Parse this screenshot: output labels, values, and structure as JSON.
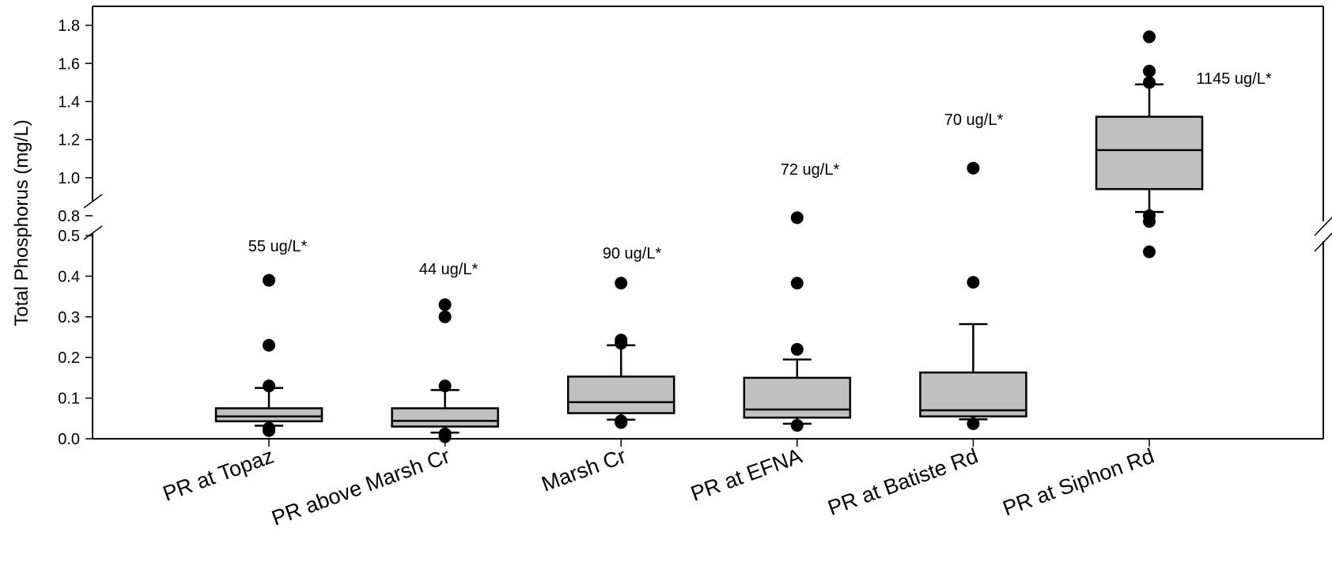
{
  "chart_data": {
    "type": "box",
    "title": "",
    "xlabel": "",
    "ylabel": "Total Phosphorus (mg/L)",
    "y_axis_break": true,
    "y_segments": [
      {
        "range": [
          0,
          0.5
        ],
        "ticks": [
          "0.0",
          "0.1",
          "0.2",
          "0.3",
          "0.4",
          "0.5"
        ]
      },
      {
        "range": [
          0.7,
          1.9
        ],
        "ticks": [
          "0.8",
          "1.0",
          "1.2",
          "1.4",
          "1.6",
          "1.8"
        ]
      }
    ],
    "grid": false,
    "box_fill": "#c0c0c0",
    "categories": [
      "PR at Topaz",
      "PR above Marsh Cr",
      "Marsh Cr",
      "PR at EFNA",
      "PR at Batiste Rd",
      "PR at Siphon Rd"
    ],
    "annotations": [
      "55 ug/L*",
      "44 ug/L*",
      "90 ug/L*",
      "72 ug/L*",
      "70 ug/L*",
      "1145 ug/L*"
    ],
    "boxes": [
      {
        "whisker_low": 0.032,
        "q1": 0.043,
        "median": 0.055,
        "q3": 0.075,
        "whisker_high": 0.125,
        "outliers": [
          0.02,
          0.026,
          0.13,
          0.23,
          0.39
        ]
      },
      {
        "whisker_low": 0.015,
        "q1": 0.03,
        "median": 0.044,
        "q3": 0.075,
        "whisker_high": 0.12,
        "outliers": [
          0.005,
          0.012,
          0.13,
          0.3,
          0.33
        ]
      },
      {
        "whisker_low": 0.047,
        "q1": 0.063,
        "median": 0.09,
        "q3": 0.153,
        "whisker_high": 0.23,
        "outliers": [
          0.04,
          0.044,
          0.235,
          0.243,
          0.383
        ]
      },
      {
        "whisker_low": 0.037,
        "q1": 0.052,
        "median": 0.072,
        "q3": 0.15,
        "whisker_high": 0.195,
        "outliers": [
          0.033,
          0.22,
          0.383,
          0.79
        ]
      },
      {
        "whisker_low": 0.048,
        "q1": 0.055,
        "median": 0.07,
        "q3": 0.163,
        "whisker_high": 0.282,
        "outliers": [
          0.037,
          0.385,
          1.05
        ]
      },
      {
        "whisker_low": 0.82,
        "q1": 0.94,
        "median": 1.145,
        "q3": 1.32,
        "whisker_high": 1.49,
        "outliers": [
          0.46,
          0.77,
          0.8,
          1.5,
          1.56,
          1.74
        ]
      }
    ]
  }
}
